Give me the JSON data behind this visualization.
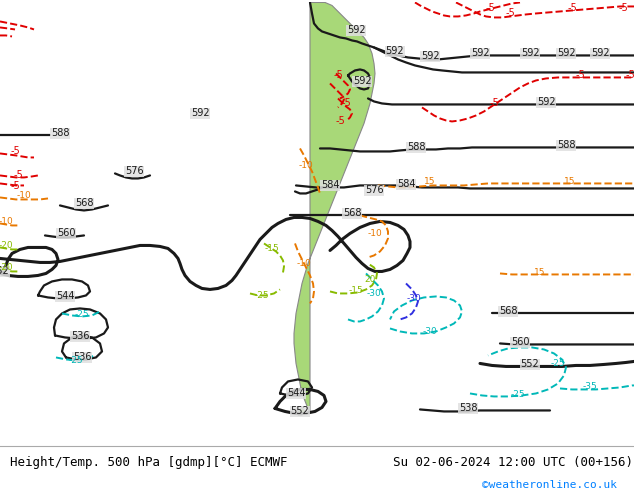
{
  "title_left": "Height/Temp. 500 hPa [gdmp][°C] ECMWF",
  "title_right": "Su 02-06-2024 12:00 UTC (00+156)",
  "credit": "©weatheronline.co.uk",
  "fig_width": 6.34,
  "fig_height": 4.9,
  "dpi": 100,
  "sea_color": "#e0e0e0",
  "land_color": "#a8d878",
  "land_edge_color": "#888888",
  "bottom_bar_color": "#f0f0f0",
  "text_font_size": 9,
  "credit_color": "#0080ff",
  "credit_font_size": 8
}
